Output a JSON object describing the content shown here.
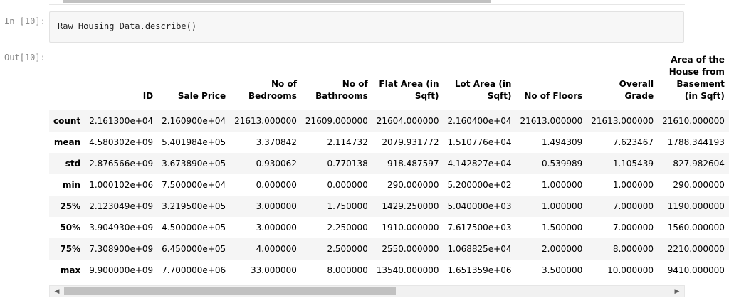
{
  "cell": {
    "in_prompt": "In [10]:",
    "out_prompt": "Out[10]:",
    "code": "Raw_Housing_Data.describe()"
  },
  "table": {
    "columns": [
      "ID",
      "Sale Price",
      "No of Bedrooms",
      "No of Bathrooms",
      "Flat Area (in Sqft)",
      "Lot Area (in Sqft)",
      "No of Floors",
      "Overall Grade",
      "Area of the House from Basement (in Sqft)"
    ],
    "rows": [
      {
        "label": "count",
        "values": [
          "2.161300e+04",
          "2.160900e+04",
          "21613.000000",
          "21609.000000",
          "21604.000000",
          "2.160400e+04",
          "21613.000000",
          "21613.000000",
          "21610.000000"
        ]
      },
      {
        "label": "mean",
        "values": [
          "4.580302e+09",
          "5.401984e+05",
          "3.370842",
          "2.114732",
          "2079.931772",
          "1.510776e+04",
          "1.494309",
          "7.623467",
          "1788.344193"
        ]
      },
      {
        "label": "std",
        "values": [
          "2.876566e+09",
          "3.673890e+05",
          "0.930062",
          "0.770138",
          "918.487597",
          "4.142827e+04",
          "0.539989",
          "1.105439",
          "827.982604"
        ]
      },
      {
        "label": "min",
        "values": [
          "1.000102e+06",
          "7.500000e+04",
          "0.000000",
          "0.000000",
          "290.000000",
          "5.200000e+02",
          "1.000000",
          "1.000000",
          "290.000000"
        ]
      },
      {
        "label": "25%",
        "values": [
          "2.123049e+09",
          "3.219500e+05",
          "3.000000",
          "1.750000",
          "1429.250000",
          "5.040000e+03",
          "1.000000",
          "7.000000",
          "1190.000000"
        ]
      },
      {
        "label": "50%",
        "values": [
          "3.904930e+09",
          "4.500000e+05",
          "3.000000",
          "2.250000",
          "1910.000000",
          "7.617500e+03",
          "1.500000",
          "7.000000",
          "1560.000000"
        ]
      },
      {
        "label": "75%",
        "values": [
          "7.308900e+09",
          "6.450000e+05",
          "4.000000",
          "2.500000",
          "2550.000000",
          "1.068825e+04",
          "2.000000",
          "8.000000",
          "2210.000000"
        ]
      },
      {
        "label": "max",
        "values": [
          "9.900000e+09",
          "7.700000e+06",
          "33.000000",
          "8.000000",
          "13540.000000",
          "1.651359e+06",
          "3.500000",
          "10.000000",
          "9410.000000"
        ]
      }
    ]
  },
  "scrollbar": {
    "left_arrow": "◀",
    "right_arrow": "▶",
    "position_fraction": 0.0,
    "visible_fraction": 0.54
  }
}
